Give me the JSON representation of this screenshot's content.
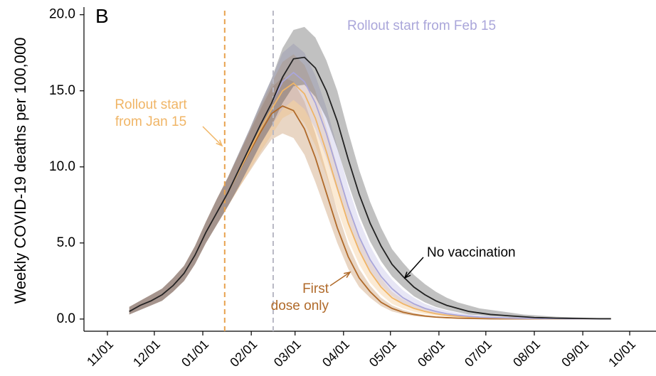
{
  "chart_data": {
    "type": "line",
    "panel_label": "B",
    "ylabel": "Weekly COVID-19 deaths per 100,000",
    "xlim": [
      "10/17",
      "10/16"
    ],
    "xticks": [
      "11/01",
      "12/01",
      "01/01",
      "02/01",
      "03/01",
      "04/01",
      "05/01",
      "06/01",
      "07/01",
      "08/01",
      "09/01",
      "10/01"
    ],
    "ylim": [
      -0.8,
      20.5
    ],
    "yticks": [
      {
        "value": 0,
        "label": "0.0"
      },
      {
        "value": 5,
        "label": "5.0"
      },
      {
        "value": 10,
        "label": "10.0"
      },
      {
        "value": 15,
        "label": "15.0"
      },
      {
        "value": 20,
        "label": "20.0"
      }
    ],
    "x": [
      "11/15",
      "11/22",
      "11/29",
      "12/06",
      "12/13",
      "12/20",
      "12/27",
      "01/03",
      "01/10",
      "01/17",
      "01/24",
      "01/31",
      "02/07",
      "02/14",
      "02/21",
      "02/28",
      "03/07",
      "03/14",
      "03/21",
      "03/28",
      "04/04",
      "04/11",
      "04/18",
      "04/25",
      "05/02",
      "05/09",
      "05/16",
      "05/23",
      "05/30",
      "06/06",
      "06/13",
      "06/20",
      "06/27",
      "07/04",
      "07/11",
      "07/18",
      "07/25",
      "08/01",
      "08/08",
      "08/15",
      "08/22",
      "08/29",
      "09/05",
      "09/12",
      "09/19"
    ],
    "vlines": [
      {
        "x": "01/15",
        "color": "#e8a24e"
      },
      {
        "x": "02/15",
        "color": "#b8b8c4"
      }
    ],
    "series": [
      {
        "color": "#b06a2a",
        "values": [
          0.5,
          0.9,
          1.2,
          1.6,
          2.2,
          3.0,
          4.2,
          5.7,
          7.0,
          8.3,
          9.7,
          11.0,
          12.3,
          13.5,
          14.0,
          13.7,
          12.5,
          10.6,
          8.3,
          6.0,
          4.1,
          2.7,
          1.8,
          1.1,
          0.7,
          0.45,
          0.3,
          0.2,
          0.13,
          0.09,
          0.06,
          0.04,
          0.03,
          0.02,
          0.01,
          0.01,
          0.01,
          0.01,
          0.01,
          0.01,
          0.01,
          0.01,
          0.01,
          0.01,
          0.01
        ],
        "upper": [
          0.8,
          1.2,
          1.6,
          2.0,
          2.7,
          3.5,
          4.8,
          6.4,
          7.9,
          9.3,
          10.8,
          12.3,
          13.8,
          15.2,
          15.9,
          15.6,
          14.3,
          12.2,
          9.7,
          7.1,
          4.9,
          3.3,
          2.2,
          1.4,
          0.9,
          0.6,
          0.4,
          0.27,
          0.18,
          0.12,
          0.08,
          0.06,
          0.04,
          0.03,
          0.02,
          0.02,
          0.02,
          0.02,
          0.02,
          0.02,
          0.02,
          0.02,
          0.02,
          0.02,
          0.02
        ],
        "lower": [
          0.3,
          0.6,
          0.9,
          1.2,
          1.8,
          2.5,
          3.6,
          5.0,
          6.2,
          7.4,
          8.6,
          9.7,
          10.8,
          11.8,
          12.2,
          11.9,
          10.8,
          9.0,
          7.0,
          5.0,
          3.3,
          2.1,
          1.4,
          0.85,
          0.5,
          0.32,
          0.2,
          0.13,
          0.08,
          0.05,
          0.03,
          0.02,
          0.01,
          0.01,
          0,
          0,
          0,
          0,
          0,
          0,
          0,
          0,
          0,
          0,
          0
        ]
      },
      {
        "color": "#f0b566",
        "values": [
          0.5,
          0.9,
          1.2,
          1.6,
          2.2,
          3.0,
          4.2,
          5.7,
          7.0,
          8.3,
          9.7,
          11.1,
          12.5,
          13.8,
          15.0,
          15.5,
          14.8,
          13.2,
          11.0,
          8.6,
          6.3,
          4.5,
          3.1,
          2.1,
          1.4,
          1.0,
          0.7,
          0.5,
          0.35,
          0.25,
          0.18,
          0.13,
          0.1,
          0.08,
          0.06,
          0.05,
          0.04,
          0.03,
          0.03,
          0.02,
          0.02,
          0.02,
          0.01,
          0.01,
          0.01
        ],
        "upper": [
          0.8,
          1.2,
          1.6,
          2.0,
          2.7,
          3.5,
          4.8,
          6.4,
          7.9,
          9.3,
          10.8,
          12.4,
          14.0,
          15.5,
          16.9,
          17.4,
          16.7,
          15.0,
          12.6,
          10.0,
          7.5,
          5.4,
          3.8,
          2.7,
          1.8,
          1.3,
          0.95,
          0.7,
          0.5,
          0.36,
          0.27,
          0.2,
          0.15,
          0.12,
          0.1,
          0.08,
          0.06,
          0.05,
          0.05,
          0.04,
          0.03,
          0.03,
          0.02,
          0.02,
          0.02
        ],
        "lower": [
          0.3,
          0.6,
          0.9,
          1.2,
          1.8,
          2.5,
          3.6,
          5.0,
          6.2,
          7.4,
          8.6,
          9.8,
          11.0,
          12.1,
          13.2,
          13.6,
          12.9,
          11.4,
          9.4,
          7.2,
          5.2,
          3.6,
          2.4,
          1.6,
          1.0,
          0.7,
          0.48,
          0.33,
          0.22,
          0.15,
          0.1,
          0.07,
          0.05,
          0.04,
          0.03,
          0.02,
          0.02,
          0.01,
          0.01,
          0.01,
          0.01,
          0.01,
          0,
          0,
          0
        ]
      },
      {
        "color": "#aaa6da",
        "values": [
          0.5,
          0.9,
          1.2,
          1.6,
          2.2,
          3.0,
          4.2,
          5.7,
          7.0,
          8.3,
          9.8,
          11.3,
          12.8,
          14.2,
          15.6,
          16.2,
          15.6,
          14.2,
          12.2,
          9.8,
          7.4,
          5.4,
          3.9,
          2.8,
          2.0,
          1.4,
          1.0,
          0.7,
          0.5,
          0.35,
          0.25,
          0.18,
          0.13,
          0.1,
          0.08,
          0.06,
          0.05,
          0.04,
          0.03,
          0.03,
          0.02,
          0.02,
          0.02,
          0.01,
          0.01
        ],
        "upper": [
          0.8,
          1.2,
          1.6,
          2.0,
          2.7,
          3.5,
          4.8,
          6.4,
          7.9,
          9.3,
          10.9,
          12.5,
          14.2,
          15.8,
          17.5,
          18.1,
          17.5,
          16.0,
          13.9,
          11.3,
          8.7,
          6.5,
          4.8,
          3.5,
          2.6,
          1.9,
          1.4,
          1.0,
          0.75,
          0.55,
          0.4,
          0.3,
          0.22,
          0.18,
          0.14,
          0.11,
          0.09,
          0.07,
          0.06,
          0.05,
          0.04,
          0.04,
          0.03,
          0.03,
          0.02
        ],
        "lower": [
          0.3,
          0.6,
          0.9,
          1.2,
          1.8,
          2.5,
          3.6,
          5.0,
          6.2,
          7.4,
          8.7,
          10.1,
          11.5,
          12.7,
          13.8,
          14.4,
          13.8,
          12.5,
          10.6,
          8.4,
          6.2,
          4.4,
          3.1,
          2.2,
          1.5,
          1.0,
          0.7,
          0.5,
          0.33,
          0.22,
          0.15,
          0.1,
          0.07,
          0.05,
          0.04,
          0.03,
          0.02,
          0.02,
          0.01,
          0.01,
          0.01,
          0.01,
          0.01,
          0,
          0
        ]
      },
      {
        "color": "#222222",
        "values": [
          0.5,
          0.9,
          1.2,
          1.6,
          2.2,
          3.0,
          4.2,
          5.7,
          7.0,
          8.3,
          9.8,
          11.3,
          12.8,
          14.2,
          15.9,
          17.1,
          17.2,
          16.5,
          15.0,
          13.0,
          10.5,
          8.2,
          6.3,
          4.8,
          3.6,
          2.8,
          2.1,
          1.6,
          1.2,
          0.9,
          0.7,
          0.5,
          0.4,
          0.3,
          0.25,
          0.2,
          0.15,
          0.1,
          0.08,
          0.06,
          0.05,
          0.04,
          0.03,
          0.02,
          0.02
        ],
        "upper": [
          0.8,
          1.2,
          1.6,
          2.0,
          2.7,
          3.5,
          4.8,
          6.4,
          7.9,
          9.3,
          10.9,
          12.5,
          14.2,
          15.8,
          17.8,
          19.0,
          19.2,
          18.5,
          17.0,
          15.0,
          12.3,
          9.8,
          7.7,
          6.0,
          4.6,
          3.7,
          2.9,
          2.3,
          1.8,
          1.4,
          1.1,
          0.9,
          0.7,
          0.6,
          0.5,
          0.4,
          0.3,
          0.25,
          0.2,
          0.15,
          0.12,
          0.1,
          0.08,
          0.06,
          0.05
        ],
        "lower": [
          0.3,
          0.6,
          0.9,
          1.2,
          1.8,
          2.5,
          3.6,
          5.0,
          6.2,
          7.4,
          8.7,
          10.1,
          11.5,
          12.7,
          14.2,
          15.3,
          15.4,
          14.6,
          13.2,
          11.2,
          8.9,
          6.8,
          5.1,
          3.8,
          2.8,
          2.1,
          1.5,
          1.1,
          0.8,
          0.6,
          0.45,
          0.3,
          0.25,
          0.18,
          0.15,
          0.1,
          0.08,
          0.05,
          0.04,
          0.03,
          0.02,
          0.02,
          0.01,
          0.01,
          0.01
        ]
      }
    ],
    "annotations": [
      {
        "lines": [
          "Rollout start from Feb 15"
        ],
        "color": "#aaa6da"
      },
      {
        "lines": [
          "Rollout start",
          "from Jan 15"
        ],
        "color": "#f0b566"
      },
      {
        "lines": [
          "No vaccination"
        ],
        "color": "#000000"
      },
      {
        "lines": [
          "First",
          "dose only"
        ],
        "color": "#b06a2a"
      }
    ]
  }
}
